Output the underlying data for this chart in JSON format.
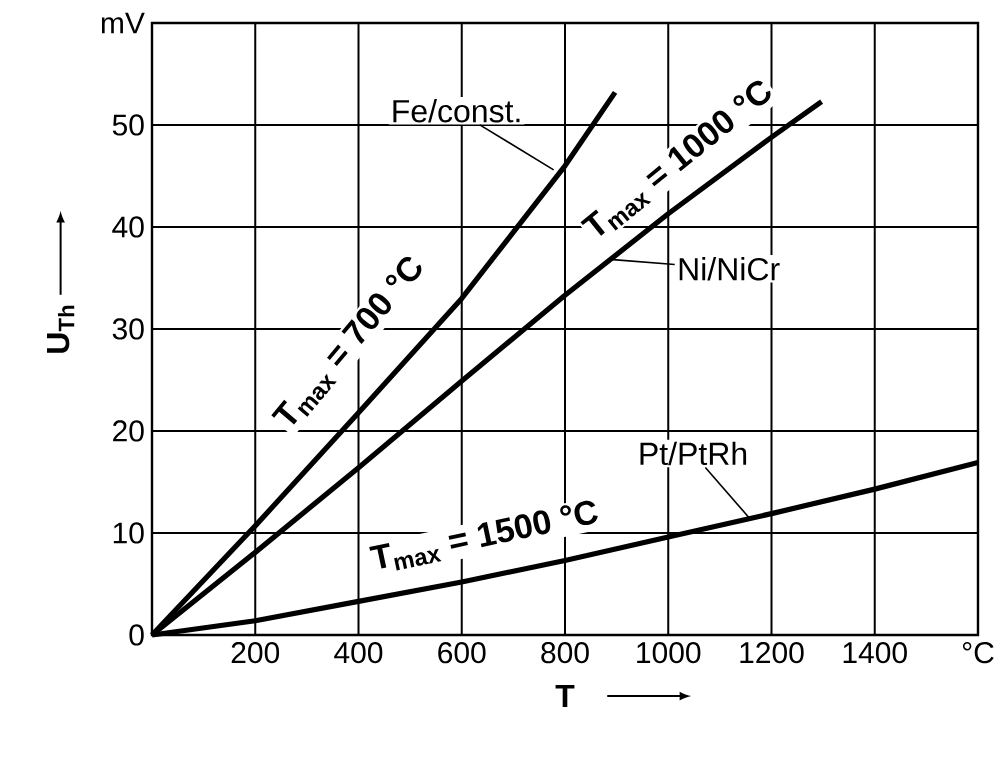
{
  "chart_data": {
    "type": "line",
    "xlabel": "T",
    "ylabel": "U$_{Th}$",
    "xlim": [
      0,
      1600
    ],
    "ylim": [
      0,
      60
    ],
    "xticks": [
      {
        "value": 0,
        "label": null
      },
      200,
      400,
      600,
      800,
      1000,
      1200,
      1400,
      {
        "value": 1600,
        "label": "°C"
      }
    ],
    "yticks": [
      0,
      10,
      20,
      30,
      40,
      50,
      {
        "value": 60,
        "label": "mV"
      }
    ],
    "grid": true,
    "marker": "none",
    "line_style": "solid",
    "series": [
      {
        "name": "Fe/const.",
        "color": "#000000",
        "x": [
          0,
          200,
          400,
          600,
          800,
          897
        ],
        "values": [
          0,
          10.7,
          21.8,
          33.0,
          46.0,
          53.2
        ]
      },
      {
        "name": "Ni/NiCr",
        "color": "#000000",
        "x": [
          0,
          200,
          400,
          600,
          800,
          1000,
          1200,
          1297
        ],
        "values": [
          0,
          8.1,
          16.4,
          24.9,
          33.3,
          41.3,
          48.8,
          52.3
        ]
      },
      {
        "name": "Pt/PtRh",
        "color": "#000000",
        "x": [
          0,
          200,
          400,
          600,
          800,
          1000,
          1200,
          1400,
          1600
        ],
        "values": [
          0,
          1.4,
          3.3,
          5.2,
          7.3,
          9.6,
          11.9,
          14.3,
          16.9
        ]
      }
    ],
    "annotations": [
      "T$_{max}$ = 700 °C",
      "T$_{max}$ = 1000 °C",
      "T$_{max}$ = 1500 °C"
    ]
  }
}
